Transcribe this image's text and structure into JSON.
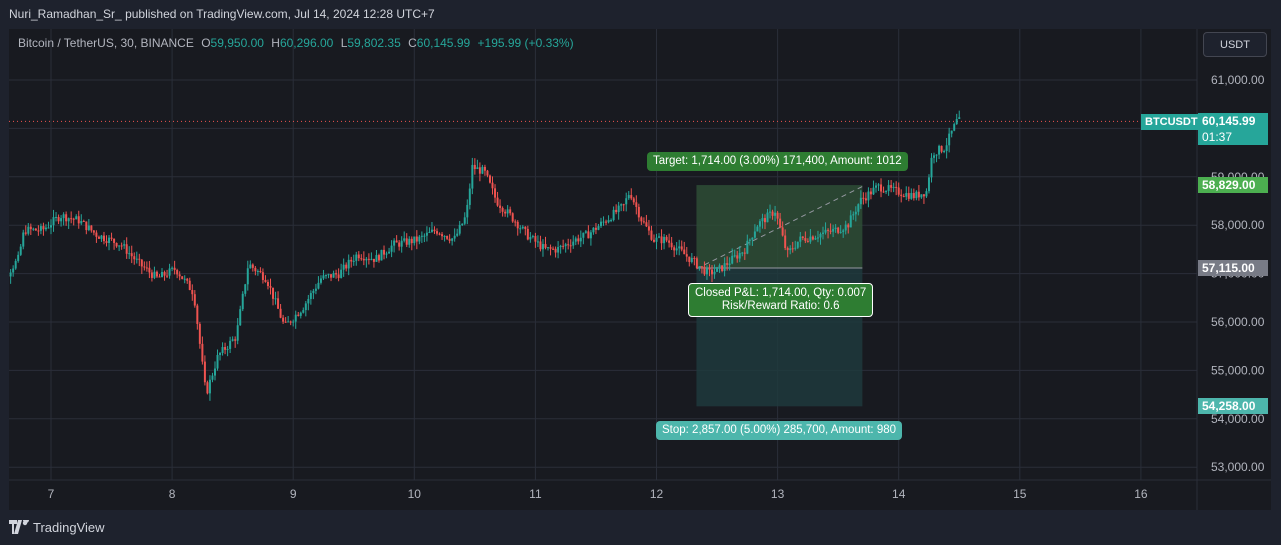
{
  "header": {
    "published_line": "Nuri_Ramadhan_Sr_ published on TradingView.com, Jul 14, 2024 12:28 UTC+7"
  },
  "symbol": {
    "name": "Bitcoin / TetherUS, 30, BINANCE",
    "o_label": "O",
    "o_value": "59,950.00",
    "h_label": "H",
    "h_value": "60,296.00",
    "l_label": "L",
    "l_value": "59,802.35",
    "c_label": "C",
    "c_value": "60,145.99",
    "change": "+195.99 (+0.33%)"
  },
  "currency_button": "USDT",
  "price_tags": {
    "ticker": "BTCUSDT",
    "last_price": "60,145.99",
    "countdown": "01:37",
    "target_price": "58,829.00",
    "entry_price": "57,115.00",
    "stop_price": "54,258.00"
  },
  "position_tool": {
    "target_label": "Target: 1,714.00 (3.00%) 171,400, Amount: 1012",
    "closed_pnl_line1": "Closed P&L: 1,714.00, Qty: 0.007",
    "closed_pnl_line2": "Risk/Reward Ratio: 0.6",
    "stop_label": "Stop: 2,857.00 (5.00%) 285,700, Amount: 980"
  },
  "footer": {
    "brand": "TradingView"
  },
  "colors": {
    "up": "#26a69a",
    "down": "#ef5350",
    "background": "#181a20",
    "target_zone": "#2e4d36",
    "stop_zone": "#1f3a3d",
    "target_tag": "#4caf50"
  },
  "chart_data": {
    "type": "candlestick",
    "title": "Bitcoin / TetherUS, 30, BINANCE",
    "x_ticks": [
      "7",
      "8",
      "9",
      "10",
      "11",
      "12",
      "13",
      "14",
      "15",
      "16"
    ],
    "y_ticks": [
      "53,000.00",
      "54,000.00",
      "55,000.00",
      "56,000.00",
      "57,000.00",
      "58,000.00",
      "59,000.00",
      "60,000.00",
      "61,000.00"
    ],
    "y_tick_values": [
      53000,
      54000,
      55000,
      56000,
      57000,
      58000,
      59000,
      60000,
      61000
    ],
    "ylim": [
      52500,
      61500
    ],
    "xlim": [
      6.5,
      16.5
    ],
    "grid": true,
    "last_price": 60145.99,
    "position": {
      "entry": 57115,
      "target": 58829,
      "stop": 54258,
      "start_day": 12.33,
      "end_day": 13.7
    },
    "price_path": [
      [
        6.5,
        56700
      ],
      [
        6.6,
        56800
      ],
      [
        6.75,
        57300
      ],
      [
        6.8,
        57900
      ],
      [
        6.95,
        57900
      ],
      [
        7.1,
        58200
      ],
      [
        7.25,
        58100
      ],
      [
        7.4,
        57800
      ],
      [
        7.6,
        57600
      ],
      [
        7.75,
        57200
      ],
      [
        7.9,
        56900
      ],
      [
        8.05,
        57100
      ],
      [
        8.2,
        56600
      ],
      [
        8.3,
        54500
      ],
      [
        8.4,
        55300
      ],
      [
        8.55,
        55700
      ],
      [
        8.65,
        57200
      ],
      [
        8.8,
        56900
      ],
      [
        8.95,
        55900
      ],
      [
        9.1,
        56300
      ],
      [
        9.25,
        56900
      ],
      [
        9.4,
        57000
      ],
      [
        9.55,
        57400
      ],
      [
        9.7,
        57300
      ],
      [
        9.85,
        57600
      ],
      [
        10.05,
        57700
      ],
      [
        10.2,
        57900
      ],
      [
        10.35,
        57700
      ],
      [
        10.45,
        58200
      ],
      [
        10.5,
        59200
      ],
      [
        10.6,
        59100
      ],
      [
        10.7,
        58500
      ],
      [
        10.85,
        58100
      ],
      [
        10.95,
        57800
      ],
      [
        11.1,
        57500
      ],
      [
        11.2,
        57500
      ],
      [
        11.35,
        57700
      ],
      [
        11.45,
        57800
      ],
      [
        11.6,
        58100
      ],
      [
        11.75,
        58400
      ],
      [
        11.8,
        58700
      ],
      [
        11.9,
        58100
      ],
      [
        12.0,
        57700
      ],
      [
        12.1,
        57700
      ],
      [
        12.25,
        57400
      ],
      [
        12.35,
        57200
      ],
      [
        12.45,
        57000
      ],
      [
        12.55,
        57100
      ],
      [
        12.65,
        57300
      ],
      [
        12.75,
        57500
      ],
      [
        12.85,
        58000
      ],
      [
        13.0,
        58300
      ],
      [
        13.1,
        57400
      ],
      [
        13.2,
        57700
      ],
      [
        13.35,
        57800
      ],
      [
        13.5,
        57900
      ],
      [
        13.6,
        58000
      ],
      [
        13.7,
        58500
      ],
      [
        13.85,
        58800
      ],
      [
        14.0,
        58700
      ],
      [
        14.15,
        58600
      ],
      [
        14.25,
        58700
      ],
      [
        14.3,
        59500
      ],
      [
        14.4,
        59600
      ],
      [
        14.5,
        60146
      ]
    ]
  }
}
